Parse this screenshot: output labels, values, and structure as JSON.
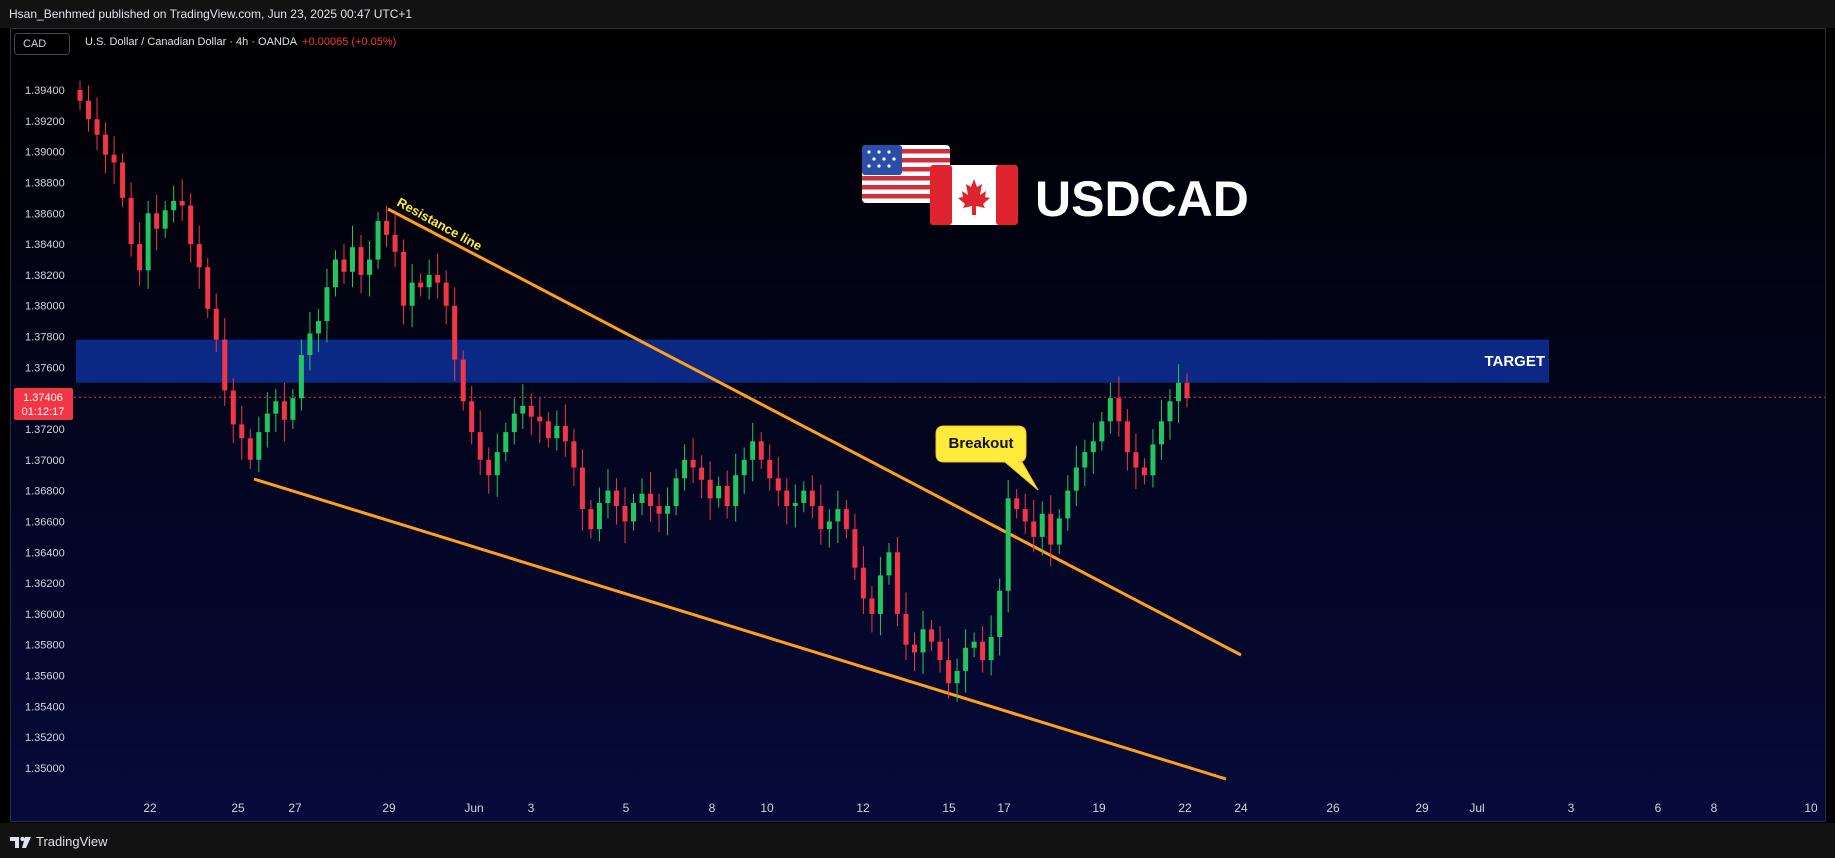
{
  "publisher": "Hsan_Benhmed published on TradingView.com, Jun 23, 2025 00:47 UTC+1",
  "currency_button": "CAD",
  "legend": {
    "symbol": "U.S. Dollar / Canadian Dollar · 4h · OANDA",
    "change": "+0.00065 (+0.05%)"
  },
  "brand": "TradingView",
  "colors": {
    "up": "#22c55e",
    "down": "#f23645",
    "target_zone": "#0b2a8a",
    "trendline": "#ff9f1c",
    "callout": "#ffeb3b"
  },
  "chart_data": {
    "type": "candlestick",
    "title": "USDCAD",
    "timeframe": "4h",
    "ylim": [
      1.3485,
      1.3965
    ],
    "y_ticks": [
      "1.35000",
      "1.35200",
      "1.35400",
      "1.35600",
      "1.35800",
      "1.36000",
      "1.36200",
      "1.36400",
      "1.36600",
      "1.36800",
      "1.37000",
      "1.37200",
      "1.37400",
      "1.37600",
      "1.37800",
      "1.38000",
      "1.38200",
      "1.38400",
      "1.38600",
      "1.38800",
      "1.39000",
      "1.39200",
      "1.39400"
    ],
    "x_ticks": [
      "22",
      "25",
      "27",
      "29",
      "Jun",
      "3",
      "5",
      "8",
      "10",
      "12",
      "15",
      "17",
      "19",
      "22",
      "24",
      "26",
      "29",
      "Jul",
      "3",
      "6",
      "8",
      "10"
    ],
    "last_price": "1.37406",
    "countdown": "01:12:17",
    "target_zone": {
      "label": "TARGET",
      "low": 1.375,
      "high": 1.3778
    },
    "annotations": {
      "resistance": "Resistance line",
      "breakout": "Breakout"
    },
    "trendlines": {
      "resistance": [
        [
          "May 29",
          1.3862
        ],
        [
          "Jun 24",
          1.3575
        ]
      ],
      "support": [
        [
          "May 25",
          1.3686
        ],
        [
          "Jun 24",
          1.3495
        ]
      ]
    },
    "closes": [
      1.3933,
      1.3921,
      1.3911,
      1.3898,
      1.3893,
      1.387,
      1.384,
      1.3823,
      1.386,
      1.385,
      1.3862,
      1.3868,
      1.3865,
      1.384,
      1.3825,
      1.3798,
      1.3778,
      1.3745,
      1.3723,
      1.3714,
      1.37,
      1.3718,
      1.373,
      1.3738,
      1.3726,
      1.374,
      1.3768,
      1.3782,
      1.379,
      1.3812,
      1.383,
      1.3822,
      1.3838,
      1.382,
      1.383,
      1.3855,
      1.3846,
      1.3835,
      1.38,
      1.3815,
      1.3812,
      1.382,
      1.3815,
      1.38,
      1.3765,
      1.3738,
      1.3718,
      1.37,
      1.369,
      1.3705,
      1.3718,
      1.373,
      1.3735,
      1.3728,
      1.3725,
      1.3714,
      1.3722,
      1.3712,
      1.3695,
      1.3668,
      1.3655,
      1.3672,
      1.368,
      1.367,
      1.366,
      1.3672,
      1.3678,
      1.367,
      1.3665,
      1.367,
      1.3688,
      1.37,
      1.3695,
      1.3687,
      1.3675,
      1.3683,
      1.367,
      1.369,
      1.37,
      1.3712,
      1.37,
      1.3688,
      1.368,
      1.367,
      1.3672,
      1.368,
      1.367,
      1.3655,
      1.366,
      1.3668,
      1.3655,
      1.363,
      1.361,
      1.36,
      1.3625,
      1.364,
      1.36,
      1.358,
      1.3575,
      1.359,
      1.3582,
      1.357,
      1.3555,
      1.3563,
      1.3578,
      1.3582,
      1.357,
      1.3585,
      1.3615,
      1.3675,
      1.3668,
      1.366,
      1.365,
      1.3665,
      1.3645,
      1.3662,
      1.368,
      1.3695,
      1.3705,
      1.3712,
      1.3725,
      1.374,
      1.3725,
      1.3705,
      1.3695,
      1.369,
      1.371,
      1.3725,
      1.3738,
      1.375,
      1.374
    ],
    "notes": "closes are approximate 4h candle closes read from the chart, oldest first"
  }
}
